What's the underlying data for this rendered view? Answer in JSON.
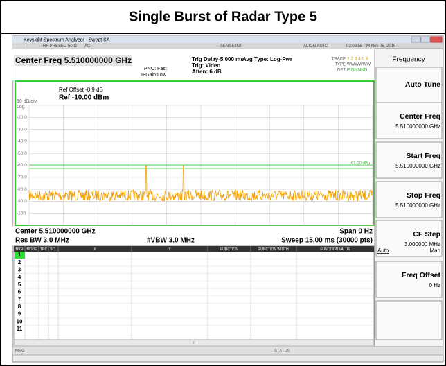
{
  "title": "Single Burst of Radar Type 5",
  "window": {
    "title": "Keysight Spectrum Analyzer - Swept SA"
  },
  "status_row": {
    "mode": "T",
    "rf": "RF PRESEL",
    "impedance": "50 Ω",
    "coupling": "AC",
    "sense": "SENSE:INT",
    "align": "ALIGN AUTO",
    "time": "03:03:58 PM Nov 05, 2016"
  },
  "header": {
    "center_freq": "Center Freq 5.510000000 GHz",
    "pno": "PNO: Fast",
    "ifgain": "IFGain:Low",
    "trig_delay": "Trig Delay-5.000 ms",
    "trig": "Trig: Video",
    "atten": "Atten: 6 dB",
    "avg_type": "Avg Type: Log-Pwr",
    "trace_label": "TRACE",
    "trace_numbers": "1 2 3 4 5 6",
    "type_label": "TYPE",
    "type_values": "WWWWWW",
    "det_label": "DET",
    "det_values": "P NNNNN"
  },
  "plot": {
    "ref_offset": "Ref Offset -0.9 dB",
    "ref_level": "Ref -10.00 dBm",
    "scale": "10 dB/div",
    "scale_type": "Log",
    "y_labels": [
      "-20.0",
      "-30.0",
      "-40.0",
      "-50.0",
      "-60.0",
      "-70.0",
      "-80.0",
      "-90.0",
      "-100"
    ],
    "display_line": "-61.00 dBm"
  },
  "footer": {
    "center": "Center 5.510000000 GHz",
    "span": "Span 0 Hz",
    "res_bw": "Res BW 3.0 MHz",
    "vbw": "#VBW 3.0 MHz",
    "sweep": "Sweep  15.00 ms (30000 pts)"
  },
  "marker_table": {
    "columns": [
      "MKR",
      "MODE",
      "TRC",
      "SCL",
      "X",
      "Y",
      "FUNCTION",
      "FUNCTION WIDTH",
      "FUNCTION VALUE"
    ],
    "rows": [
      "1",
      "2",
      "3",
      "4",
      "5",
      "6",
      "7",
      "8",
      "9",
      "10",
      "11"
    ],
    "scroll_mark": "III"
  },
  "status_bar": {
    "msg": "MSG",
    "status": "STATUS"
  },
  "softkeys": {
    "menu": "Frequency",
    "keys": [
      {
        "label": "Auto Tune"
      },
      {
        "label": "Center Freq",
        "value": "5.510000000 GHz"
      },
      {
        "label": "Start Freq",
        "value": "5.510000000 GHz"
      },
      {
        "label": "Stop Freq",
        "value": "5.510000000 GHz"
      },
      {
        "label": "CF Step",
        "value": "3.000000 MHz",
        "auto": "Auto",
        "man": "Man"
      },
      {
        "label": "Freq Offset",
        "value": "0 Hz"
      }
    ]
  }
}
